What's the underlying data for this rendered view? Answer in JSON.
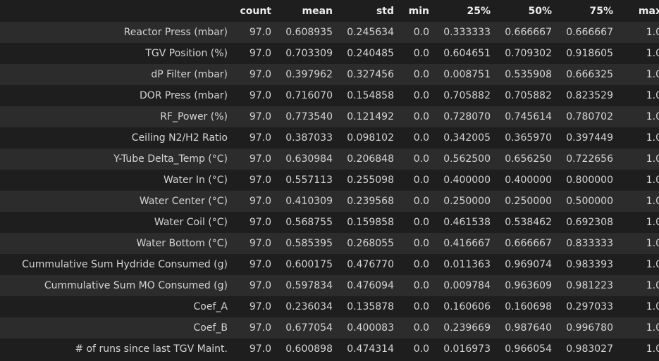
{
  "table": {
    "columns": [
      "count",
      "mean",
      "std",
      "min",
      "25%",
      "50%",
      "75%",
      "max"
    ],
    "rows": [
      {
        "label": "Reactor Press (mbar)",
        "values": [
          "97.0",
          "0.608935",
          "0.245634",
          "0.0",
          "0.333333",
          "0.666667",
          "0.666667",
          "1.0"
        ]
      },
      {
        "label": "TGV Position (%)",
        "values": [
          "97.0",
          "0.703309",
          "0.240485",
          "0.0",
          "0.604651",
          "0.709302",
          "0.918605",
          "1.0"
        ]
      },
      {
        "label": "dP Filter (mbar)",
        "values": [
          "97.0",
          "0.397962",
          "0.327456",
          "0.0",
          "0.008751",
          "0.535908",
          "0.666325",
          "1.0"
        ]
      },
      {
        "label": "DOR Press (mbar)",
        "values": [
          "97.0",
          "0.716070",
          "0.154858",
          "0.0",
          "0.705882",
          "0.705882",
          "0.823529",
          "1.0"
        ]
      },
      {
        "label": "RF_Power (%)",
        "values": [
          "97.0",
          "0.773540",
          "0.121492",
          "0.0",
          "0.728070",
          "0.745614",
          "0.780702",
          "1.0"
        ]
      },
      {
        "label": "Ceiling N2/H2 Ratio",
        "values": [
          "97.0",
          "0.387033",
          "0.098102",
          "0.0",
          "0.342005",
          "0.365970",
          "0.397449",
          "1.0"
        ]
      },
      {
        "label": "Y-Tube Delta_Temp (°C)",
        "values": [
          "97.0",
          "0.630984",
          "0.206848",
          "0.0",
          "0.562500",
          "0.656250",
          "0.722656",
          "1.0"
        ]
      },
      {
        "label": "Water In (°C)",
        "values": [
          "97.0",
          "0.557113",
          "0.255098",
          "0.0",
          "0.400000",
          "0.400000",
          "0.800000",
          "1.0"
        ]
      },
      {
        "label": "Water Center (°C)",
        "values": [
          "97.0",
          "0.410309",
          "0.239568",
          "0.0",
          "0.250000",
          "0.250000",
          "0.500000",
          "1.0"
        ]
      },
      {
        "label": "Water Coil (°C)",
        "values": [
          "97.0",
          "0.568755",
          "0.159858",
          "0.0",
          "0.461538",
          "0.538462",
          "0.692308",
          "1.0"
        ]
      },
      {
        "label": "Water Bottom (°C)",
        "values": [
          "97.0",
          "0.585395",
          "0.268055",
          "0.0",
          "0.416667",
          "0.666667",
          "0.833333",
          "1.0"
        ]
      },
      {
        "label": "Cummulative Sum Hydride Consumed (g)",
        "values": [
          "97.0",
          "0.600175",
          "0.476770",
          "0.0",
          "0.011363",
          "0.969074",
          "0.983393",
          "1.0"
        ]
      },
      {
        "label": "Cummulative Sum MO Consumed (g)",
        "values": [
          "97.0",
          "0.597834",
          "0.476094",
          "0.0",
          "0.009784",
          "0.963609",
          "0.981223",
          "1.0"
        ]
      },
      {
        "label": "Coef_A",
        "values": [
          "97.0",
          "0.236034",
          "0.135878",
          "0.0",
          "0.160606",
          "0.160698",
          "0.297033",
          "1.0"
        ]
      },
      {
        "label": "Coef_B",
        "values": [
          "97.0",
          "0.677054",
          "0.400083",
          "0.0",
          "0.239669",
          "0.987640",
          "0.996780",
          "1.0"
        ]
      },
      {
        "label": "# of runs since last TGV Maint.",
        "values": [
          "97.0",
          "0.600898",
          "0.474314",
          "0.0",
          "0.016973",
          "0.966054",
          "0.983027",
          "1.0"
        ]
      }
    ]
  },
  "colors": {
    "background": "#1e1e1e",
    "row_stripe": "#2c2c2c",
    "text": "#d4d4d4",
    "header_text": "#ececec"
  }
}
